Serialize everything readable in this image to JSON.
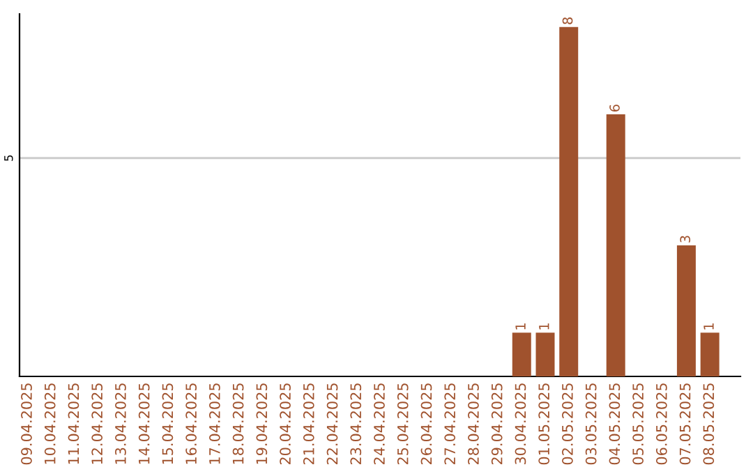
{
  "chart_data": {
    "type": "bar",
    "categories": [
      "09.04.2025",
      "10.04.2025",
      "11.04.2025",
      "12.04.2025",
      "13.04.2025",
      "14.04.2025",
      "15.04.2025",
      "16.04.2025",
      "17.04.2025",
      "18.04.2025",
      "19.04.2025",
      "20.04.2025",
      "21.04.2025",
      "22.04.2025",
      "23.04.2025",
      "24.04.2025",
      "25.04.2025",
      "26.04.2025",
      "27.04.2025",
      "28.04.2025",
      "29.04.2025",
      "30.04.2025",
      "01.05.2025",
      "02.05.2025",
      "03.05.2025",
      "04.05.2025",
      "05.05.2025",
      "06.05.2025",
      "07.05.2025",
      "08.05.2025"
    ],
    "values": [
      null,
      null,
      null,
      null,
      null,
      null,
      null,
      null,
      null,
      null,
      null,
      null,
      null,
      null,
      null,
      null,
      null,
      null,
      null,
      null,
      null,
      1,
      1,
      8,
      null,
      6,
      null,
      null,
      3,
      1
    ],
    "data_labels": true,
    "color": "#a0522d",
    "ylim": [
      0,
      8.3
    ],
    "ref_lines": [
      {
        "axis": "y",
        "value": 5,
        "label": "5",
        "color": "#cccccc"
      }
    ]
  }
}
